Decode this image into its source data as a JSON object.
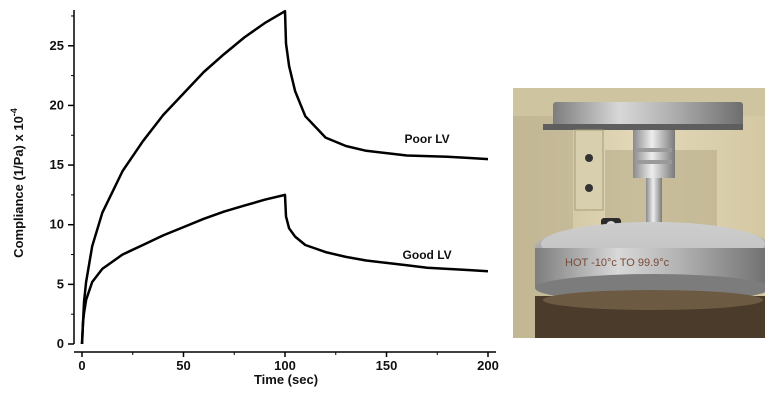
{
  "chart_data": {
    "type": "line",
    "xlabel": "Time (sec)",
    "ylabel_text": "Compliance (1/Pa) x 10",
    "ylabel_exp": "-4",
    "xlim": [
      0,
      200
    ],
    "ylim": [
      0,
      28
    ],
    "xticks": [
      0,
      50,
      100,
      150,
      200
    ],
    "yticks": [
      0,
      5,
      10,
      15,
      20,
      25
    ],
    "grid": false,
    "series": [
      {
        "name": "Poor LV",
        "color": "#000000",
        "x": [
          0,
          1,
          2,
          5,
          10,
          20,
          30,
          40,
          50,
          60,
          70,
          80,
          90,
          100,
          100.5,
          102,
          105,
          110,
          120,
          130,
          140,
          150,
          160,
          170,
          180,
          190,
          200
        ],
        "y": [
          0,
          3.5,
          5.2,
          8.2,
          11.0,
          14.5,
          17.0,
          19.2,
          21.0,
          22.8,
          24.3,
          25.7,
          26.9,
          27.9,
          25.2,
          23.3,
          21.2,
          19.1,
          17.3,
          16.6,
          16.2,
          16.0,
          15.8,
          15.75,
          15.7,
          15.6,
          15.5
        ]
      },
      {
        "name": "Good LV",
        "color": "#000000",
        "x": [
          0,
          0.5,
          1,
          2,
          5,
          10,
          20,
          30,
          40,
          50,
          60,
          70,
          80,
          90,
          100,
          100.5,
          102,
          105,
          110,
          120,
          130,
          140,
          150,
          160,
          170,
          180,
          190,
          200
        ],
        "y": [
          0,
          1.8,
          2.6,
          3.7,
          5.2,
          6.3,
          7.5,
          8.3,
          9.1,
          9.8,
          10.5,
          11.1,
          11.6,
          12.1,
          12.5,
          10.7,
          9.7,
          9.0,
          8.3,
          7.7,
          7.3,
          7.0,
          6.8,
          6.6,
          6.4,
          6.3,
          6.2,
          6.1
        ]
      }
    ]
  },
  "photo": {
    "dial_text": "HOT -10°c TO 99.9°c",
    "colors": {
      "wall": "#d9cda8",
      "plate_steel": "#a9a9a9",
      "base": "#4a3b2a"
    }
  }
}
